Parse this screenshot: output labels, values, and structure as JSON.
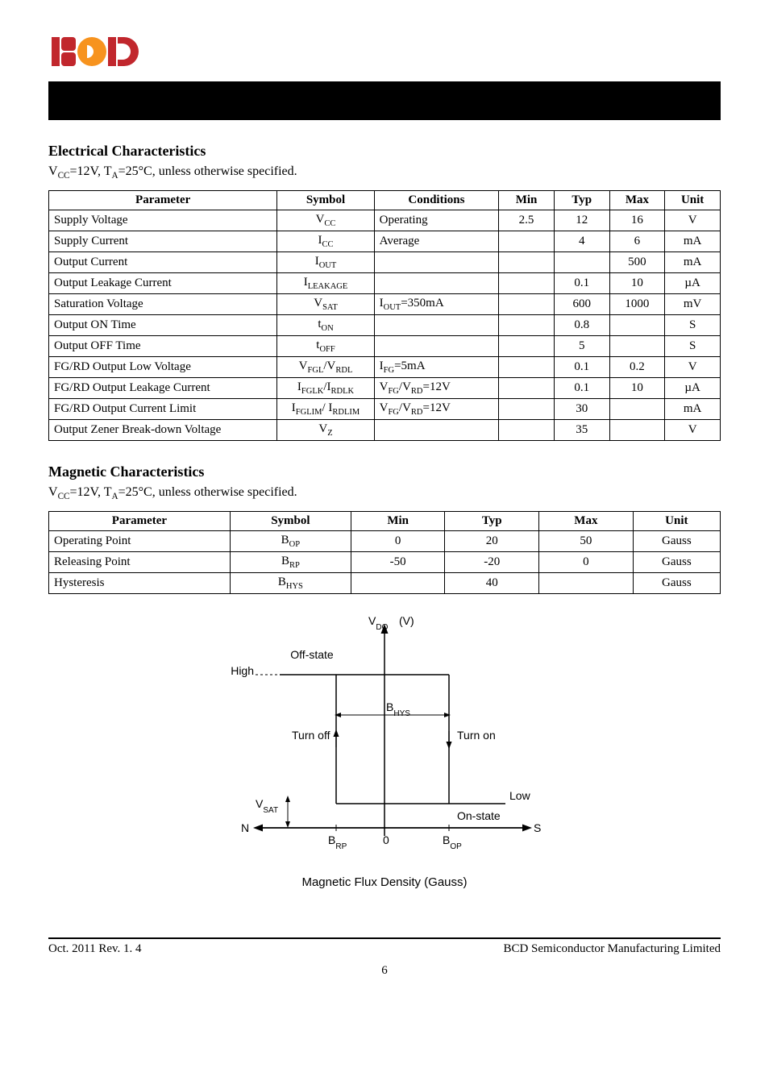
{
  "header": {
    "logo_colors": [
      "#c1272d",
      "#c1272d",
      "#f7931e",
      "#c1272d",
      "#c1272d"
    ]
  },
  "elec_section": {
    "title": "Electrical Characteristics",
    "conditions_html": "V<sub>CC</sub>=12V, T<sub>A</sub>=25°C, unless otherwise specified.",
    "headers": [
      "Parameter",
      "Symbol",
      "Conditions",
      "Min",
      "Typ",
      "Max",
      "Unit"
    ],
    "rows": [
      {
        "param": "Supply Voltage",
        "sym": "V<sub>CC</sub>",
        "cond": "Operating",
        "min": "2.5",
        "typ": "12",
        "max": "16",
        "unit": "V"
      },
      {
        "param": "Supply Current",
        "sym": "I<sub>CC</sub>",
        "cond": "Average",
        "min": "",
        "typ": "4",
        "max": "6",
        "unit": "mA"
      },
      {
        "param": "Output Current",
        "sym": "I<sub>OUT</sub>",
        "cond": "",
        "min": "",
        "typ": "",
        "max": "500",
        "unit": "mA"
      },
      {
        "param": "Output Leakage Current",
        "sym": "I<sub>LEAKAGE</sub>",
        "cond": "",
        "min": "",
        "typ": "0.1",
        "max": "10",
        "unit": "µA"
      },
      {
        "param": "Saturation Voltage",
        "sym": "V<sub>SAT</sub>",
        "cond": "I<sub>OUT</sub>=350mA",
        "min": "",
        "typ": "600",
        "max": "1000",
        "unit": "mV"
      },
      {
        "param": "Output ON Time",
        "sym": "t<sub>ON</sub>",
        "cond": "",
        "min": "",
        "typ": "0.8",
        "max": "",
        "unit": "S"
      },
      {
        "param": "Output OFF Time",
        "sym": "t<sub>OFF</sub>",
        "cond": "",
        "min": "",
        "typ": "5",
        "max": "",
        "unit": "S"
      },
      {
        "param": "FG/RD Output Low Voltage",
        "sym": "V<sub>FGL</sub>/V<sub>RDL</sub>",
        "cond": "I<sub>FG</sub>=5mA",
        "min": "",
        "typ": "0.1",
        "max": "0.2",
        "unit": "V"
      },
      {
        "param": "FG/RD Output Leakage Current",
        "sym": "I<sub>FGLK</sub>/I<sub>RDLK</sub>",
        "cond": "V<sub>FG</sub>/V<sub>RD</sub>=12V",
        "min": "",
        "typ": "0.1",
        "max": "10",
        "unit": "µA"
      },
      {
        "param": "FG/RD Output Current Limit",
        "sym": "I<sub>FGLIM</sub>/ I<sub>RDLIM</sub>",
        "cond": "V<sub>FG</sub>/V<sub>RD</sub>=12V",
        "min": "",
        "typ": "30",
        "max": "",
        "unit": "mA"
      },
      {
        "param": "Output Zener Break-down Voltage",
        "sym": "V<sub>Z</sub>",
        "cond": "",
        "min": "",
        "typ": "35",
        "max": "",
        "unit": "V"
      }
    ]
  },
  "mag_section": {
    "title": "Magnetic Characteristics",
    "conditions_html": "V<sub>CC</sub>=12V, T<sub>A</sub>=25°C, unless otherwise specified.",
    "headers": [
      "Parameter",
      "Symbol",
      "Min",
      "Typ",
      "Max",
      "Unit"
    ],
    "rows": [
      {
        "param": "Operating Point",
        "sym": "B<sub>OP</sub>",
        "min": "0",
        "typ": "20",
        "max": "50",
        "unit": "Gauss"
      },
      {
        "param": "Releasing Point",
        "sym": "B<sub>RP</sub>",
        "min": "-50",
        "typ": "-20",
        "max": "0",
        "unit": "Gauss"
      },
      {
        "param": "Hysteresis",
        "sym": "B<sub>HYS</sub>",
        "min": "",
        "typ": "40",
        "max": "",
        "unit": "Gauss"
      }
    ]
  },
  "figure": {
    "y_label": "V_DO (V)",
    "high_label": "High",
    "low_label": "Low",
    "off_state": "Off-state",
    "on_state": "On-state",
    "turn_off": "Turn off",
    "turn_on": "Turn on",
    "vsat": "V_SAT",
    "brp": "B_RP",
    "bop": "B_OP",
    "bhys": "B_HYS",
    "zero": "0",
    "n": "N",
    "s": "S",
    "caption": "Magnetic Flux Density (Gauss)"
  },
  "footer": {
    "left": "Oct. 2011    Rev. 1. 4",
    "right": "BCD Semiconductor Manufacturing Limited",
    "page": "6"
  },
  "style": {
    "table": {
      "sym_col_align": "center",
      "num_col_align": "center",
      "param_col_width_elec": "33%",
      "sym_col_width_elec": "14%",
      "cond_col_width_elec": "18%",
      "num_col_width_elec": "8%",
      "unit_col_width_elec": "8%",
      "param_col_width_mag": "27%",
      "sym_col_width_mag": "18%",
      "num_col_width_mag": "14%",
      "unit_col_width_mag": "14%"
    },
    "figure": {
      "font_family": "Arial, sans-serif",
      "font_size": 14,
      "line_color": "#000"
    }
  }
}
